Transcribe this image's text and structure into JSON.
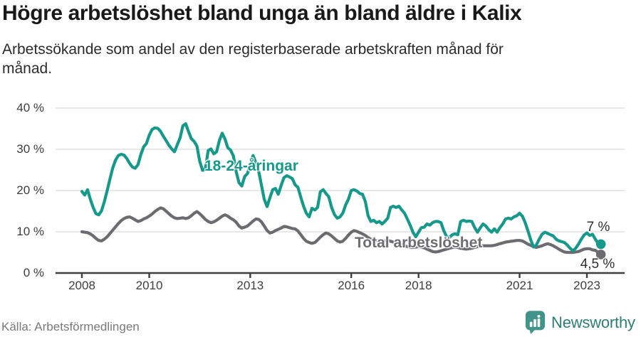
{
  "header": {
    "title": "Högre arbetslöshet bland unga än bland äldre i Kalix",
    "subtitle": "Arbetssökande som andel av den registerbaserade arbetskraften månad för månad."
  },
  "chart_data": {
    "type": "line",
    "x_start_year": 2008,
    "points_per_year": 12,
    "x_end": "mid 2023",
    "ylim": [
      0,
      40
    ],
    "grid": "horizontal",
    "y_ticks": [
      {
        "value": 0,
        "label": "0 %"
      },
      {
        "value": 10,
        "label": "10 %"
      },
      {
        "value": 20,
        "label": "20 %"
      },
      {
        "value": 30,
        "label": "30 %"
      },
      {
        "value": 40,
        "label": "40 %"
      }
    ],
    "x_ticks": [
      {
        "year": 2008,
        "label": "2008"
      },
      {
        "year": 2010,
        "label": "2010"
      },
      {
        "year": 2013,
        "label": "2013"
      },
      {
        "year": 2016,
        "label": "2016"
      },
      {
        "year": 2018,
        "label": "2018"
      },
      {
        "year": 2021,
        "label": "2021"
      },
      {
        "year": 2023,
        "label": "2023"
      }
    ],
    "series": [
      {
        "name": "18-24-åringar",
        "label": "18-24-åringar",
        "end_label": "7 %",
        "end_value": 7.0,
        "color": "#16988b",
        "values": [
          19.8,
          18.9,
          20.2,
          17.9,
          15.9,
          14.4,
          14.1,
          15.1,
          17.3,
          20.0,
          22.8,
          25.5,
          27.4,
          28.5,
          28.8,
          28.6,
          27.8,
          26.6,
          25.7,
          25.4,
          26.3,
          28.7,
          30.6,
          31.4,
          33.4,
          34.8,
          35.2,
          35.1,
          34.4,
          33.2,
          32.1,
          31.0,
          30.1,
          29.4,
          31.1,
          32.8,
          35.7,
          36.2,
          34.3,
          32.6,
          31.9,
          30.8,
          27.1,
          24.9,
          25.2,
          29.7,
          30.1,
          28.9,
          29.4,
          32.1,
          33.9,
          32.5,
          30.4,
          29.8,
          28.4,
          24.5,
          21.9,
          21.1,
          23.4,
          24.1,
          26.3,
          28.5,
          26.8,
          24.7,
          21.3,
          17.9,
          16.1,
          18.2,
          20.2,
          20.5,
          19.1,
          21.2,
          23.1,
          23.6,
          23.3,
          22.9,
          21.4,
          20.8,
          18.4,
          16.2,
          14.5,
          13.6,
          15.7,
          15.3,
          15.9,
          19.7,
          20.2,
          19.3,
          18.5,
          15.9,
          14.2,
          13.3,
          13.6,
          14.5,
          16.5,
          17.9,
          20.0,
          20.2,
          19.9,
          19.3,
          19.1,
          17.4,
          13.9,
          12.5,
          12.8,
          12.2,
          12.5,
          11.9,
          12.5,
          13.3,
          15.9,
          16.2,
          15.9,
          16.2,
          15.3,
          14.5,
          13.1,
          11.6,
          9.9,
          8.8,
          9.9,
          11.0,
          11.1,
          11.9,
          11.6,
          12.2,
          12.5,
          12.5,
          12.2,
          10.2,
          8.8,
          8.6,
          9.3,
          9.5,
          9.3,
          12.5,
          12.8,
          12.5,
          12.6,
          12.5,
          11.0,
          9.9,
          11.0,
          11.9,
          11.4,
          10.5,
          9.9,
          10.7,
          9.9,
          11.0,
          11.9,
          13.1,
          13.3,
          13.1,
          13.6,
          13.9,
          14.5,
          13.8,
          12.2,
          10.2,
          8.0,
          6.3,
          6.8,
          8.2,
          9.4,
          9.9,
          9.6,
          9.3,
          9.0,
          8.2,
          7.8,
          7.6,
          7.4,
          6.8,
          6.0,
          5.4,
          6.0,
          7.0,
          8.2,
          9.2,
          9.7,
          9.1,
          9.4,
          8.2,
          7.2,
          7.0
        ]
      },
      {
        "name": "Total arbetslöshet",
        "label": "Total arbetslöshet",
        "end_label": "4,5 %",
        "end_value": 4.5,
        "color": "#6b6b70",
        "values": [
          10.0,
          9.9,
          9.8,
          9.5,
          9.0,
          8.4,
          7.9,
          7.8,
          8.2,
          8.8,
          9.6,
          10.4,
          11.2,
          12.0,
          12.7,
          13.2,
          13.5,
          13.6,
          13.3,
          12.9,
          12.5,
          12.7,
          13.1,
          13.4,
          13.8,
          14.3,
          14.9,
          15.4,
          15.8,
          15.6,
          15.0,
          14.4,
          13.8,
          13.4,
          13.2,
          13.3,
          13.4,
          13.2,
          13.4,
          13.9,
          14.5,
          14.9,
          14.4,
          13.7,
          13.0,
          12.5,
          12.2,
          12.4,
          12.8,
          13.3,
          13.8,
          14.1,
          13.8,
          13.3,
          12.9,
          12.3,
          11.4,
          10.9,
          11.1,
          11.4,
          12.0,
          12.6,
          13.1,
          13.0,
          12.4,
          11.4,
          10.3,
          9.7,
          9.9,
          10.3,
          10.6,
          10.9,
          11.3,
          11.2,
          11.0,
          10.8,
          10.7,
          10.2,
          9.3,
          8.4,
          7.7,
          7.4,
          7.2,
          7.4,
          8.0,
          8.7,
          9.3,
          9.7,
          9.5,
          9.0,
          8.4,
          7.8,
          7.5,
          7.7,
          8.4,
          9.2,
          9.9,
          10.3,
          10.1,
          9.8,
          9.5,
          9.1,
          8.6,
          8.2,
          8.0,
          7.9,
          7.8,
          7.7,
          7.8,
          7.9,
          7.7,
          7.5,
          7.2,
          7.0,
          6.8,
          6.6,
          6.4,
          6.3,
          6.2,
          6.3,
          6.4,
          6.3,
          6.1,
          5.8,
          5.5,
          5.2,
          5.1,
          5.2,
          5.4,
          5.6,
          5.8,
          6.0,
          6.2,
          6.3,
          6.2,
          6.0,
          5.9,
          5.8,
          5.9,
          6.0,
          6.2,
          6.4,
          6.5,
          6.6,
          6.6,
          6.6,
          6.6,
          6.7,
          6.9,
          7.1,
          7.3,
          7.5,
          7.6,
          7.7,
          7.8,
          7.9,
          7.9,
          7.8,
          7.4,
          7.0,
          6.7,
          6.4,
          6.2,
          6.4,
          6.6,
          6.9,
          7.1,
          6.9,
          6.6,
          6.2,
          5.8,
          5.4,
          5.1,
          5.0,
          5.0,
          5.0,
          5.1,
          5.2,
          5.5,
          5.8,
          5.9,
          5.9,
          5.6,
          5.5,
          5.0,
          4.5
        ]
      }
    ]
  },
  "footer": {
    "source": "Källa: Arbetsförmedlingen",
    "brand": "Newsworthy"
  },
  "colors": {
    "accent_teal": "#16988b",
    "line_gray": "#6b6b70",
    "axis": "#3f3f41",
    "grid": "#dbdbdb",
    "brand_teal": "#42948b",
    "brand_text": "#2e7e76"
  }
}
